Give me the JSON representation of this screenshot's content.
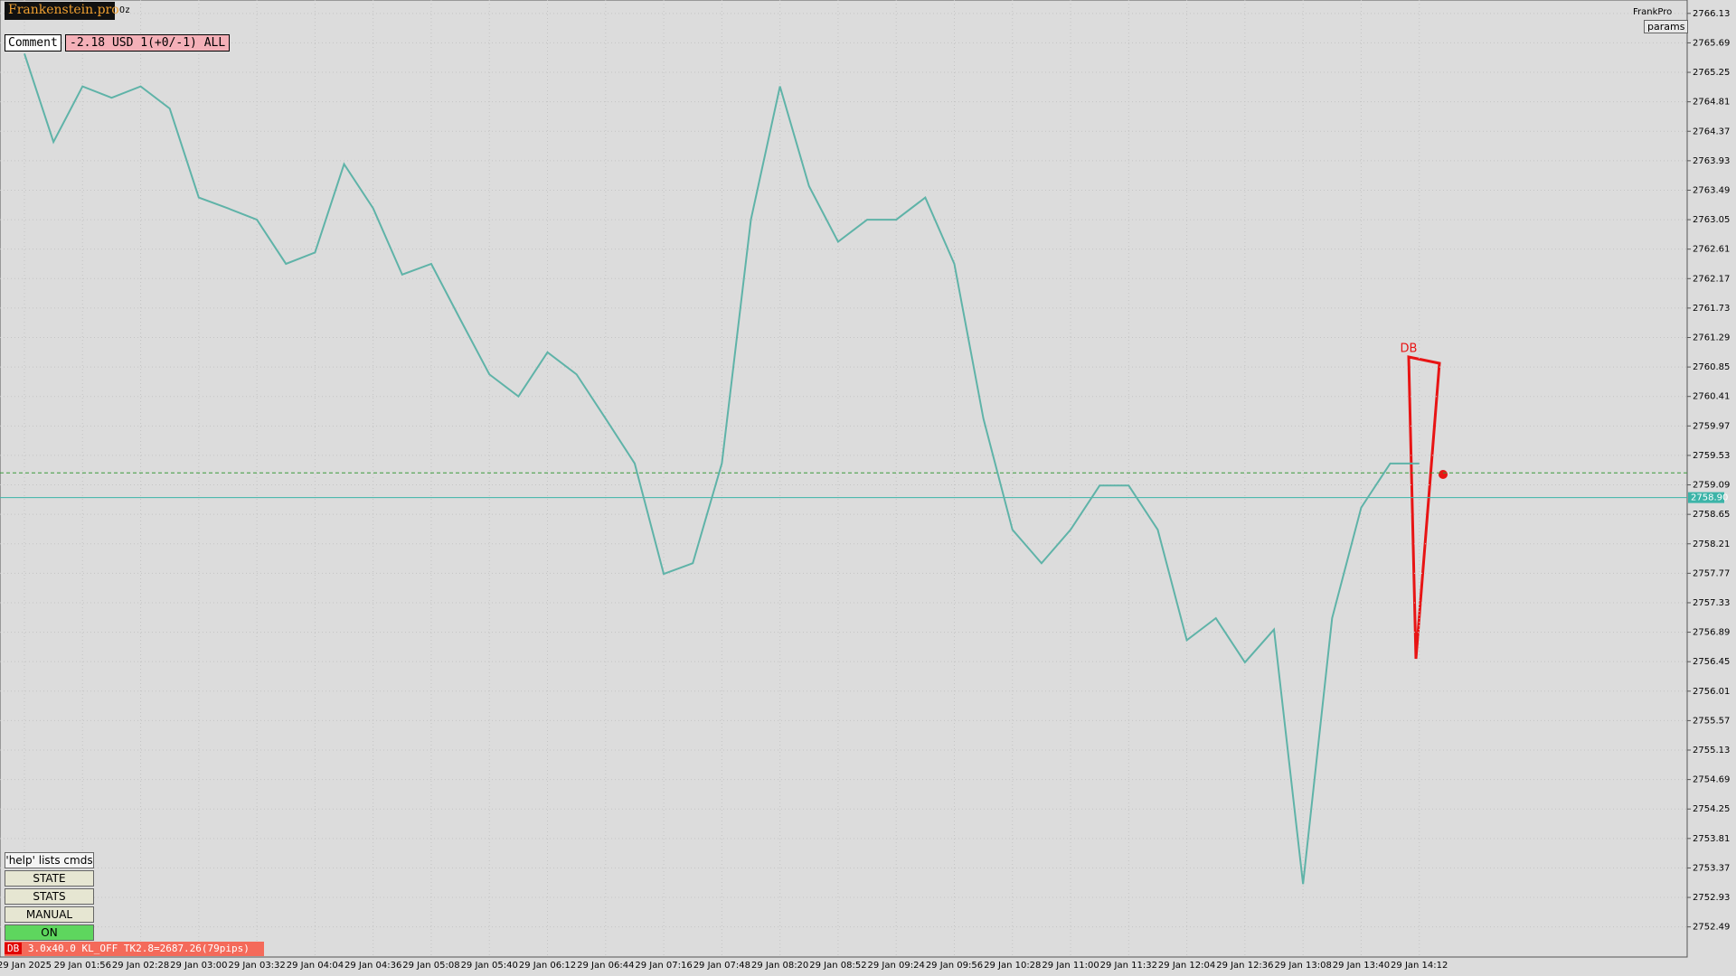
{
  "header": {
    "brand": "Frankenstein.pro",
    "symbol": "Oz",
    "account": "FrankPro",
    "params": "params"
  },
  "comment": {
    "label": "Comment",
    "text": "-2.18 USD 1(+0/-1) ALL"
  },
  "buttons": [
    "'help' lists cmds",
    "STATE",
    "STATS",
    "MANUAL",
    "ON"
  ],
  "status": {
    "tag": "DB",
    "text": "3.0x40.0 KL_OFF TK2.8=2687.26(79pips)"
  },
  "chart_data": {
    "type": "line",
    "annotation": "DB",
    "color": "#5fb3a8",
    "categories": [
      "29 Jan 2025",
      null,
      "29 Jan 01:56",
      null,
      "29 Jan 02:28",
      null,
      "29 Jan 03:00",
      null,
      "29 Jan 03:32",
      null,
      "29 Jan 04:04",
      null,
      "29 Jan 04:36",
      null,
      "29 Jan 05:08",
      null,
      "29 Jan 05:40",
      null,
      "29 Jan 06:12",
      null,
      "29 Jan 06:44",
      null,
      "29 Jan 07:16",
      null,
      "29 Jan 07:48",
      null,
      "29 Jan 08:20",
      null,
      "29 Jan 08:52",
      null,
      "29 Jan 09:24",
      null,
      "29 Jan 09:56",
      null,
      "29 Jan 10:28",
      null,
      "29 Jan 11:00",
      null,
      "29 Jan 11:32",
      null,
      "29 Jan 12:04",
      null,
      "29 Jan 12:36",
      null,
      "29 Jan 13:08",
      null,
      "29 Jan 13:40",
      null,
      "29 Jan 14:12"
    ],
    "values": [
      2765.53,
      2764.21,
      2765.04,
      2764.87,
      2765.04,
      2764.71,
      2763.38,
      2763.22,
      2763.05,
      2762.39,
      2762.56,
      2763.88,
      2763.22,
      2762.23,
      2762.39,
      2761.56,
      2760.74,
      2760.41,
      2761.07,
      2760.74,
      2760.08,
      2759.41,
      2757.76,
      2757.92,
      2759.41,
      2763.05,
      2765.04,
      2763.55,
      2762.72,
      2763.05,
      2763.05,
      2763.38,
      2762.39,
      2760.08,
      2758.42,
      2757.92,
      2758.42,
      2759.08,
      2759.08,
      2758.42,
      2756.77,
      2757.1,
      2756.44,
      2756.93,
      2753.13,
      2757.1,
      2758.75,
      2759.41,
      2759.41
    ],
    "ylim": [
      2752.04,
      2766.33
    ],
    "yticks": [
      2766.13,
      2765.69,
      2765.25,
      2764.81,
      2764.37,
      2763.93,
      2763.49,
      2763.05,
      2762.61,
      2762.17,
      2761.73,
      2761.29,
      2760.85,
      2760.41,
      2759.97,
      2759.53,
      2759.09,
      2758.65,
      2758.21,
      2757.77,
      2757.33,
      2756.89,
      2756.45,
      2756.01,
      2755.57,
      2755.13,
      2754.69,
      2754.25,
      2753.81,
      2753.37,
      2752.93,
      2752.49
    ],
    "bid": {
      "value": 2758.9,
      "label": "2758.90"
    },
    "dashed_level": 2759.27,
    "grid": true
  }
}
